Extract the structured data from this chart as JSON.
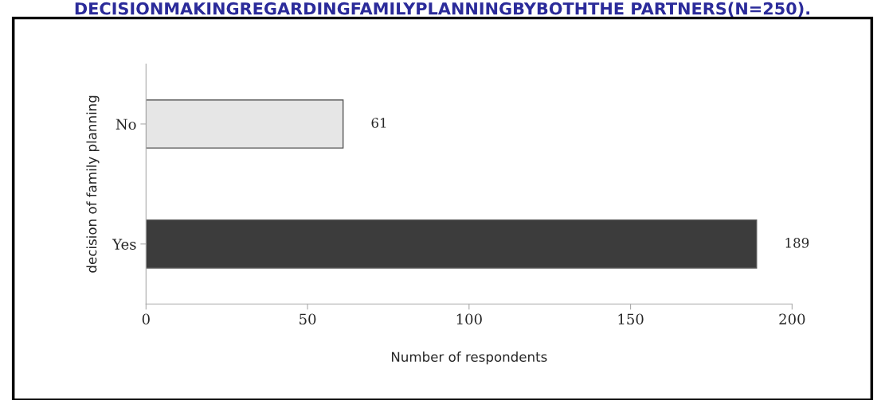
{
  "chart_data": {
    "type": "bar",
    "orientation": "horizontal",
    "title": "DECISIONMAKINGREGARDINGFAMILYPLANNINGBYBOTHTHE PARTNERS(N=250).",
    "xlabel": "Number of respondents",
    "ylabel": "decision of family planning",
    "categories": [
      "No",
      "Yes"
    ],
    "values": [
      61,
      189
    ],
    "colors": [
      "#e6e6e6",
      "#3c3c3c"
    ],
    "xlim": [
      0,
      200
    ],
    "xticks": [
      0,
      50,
      100,
      150,
      200
    ],
    "data_labels": true
  }
}
